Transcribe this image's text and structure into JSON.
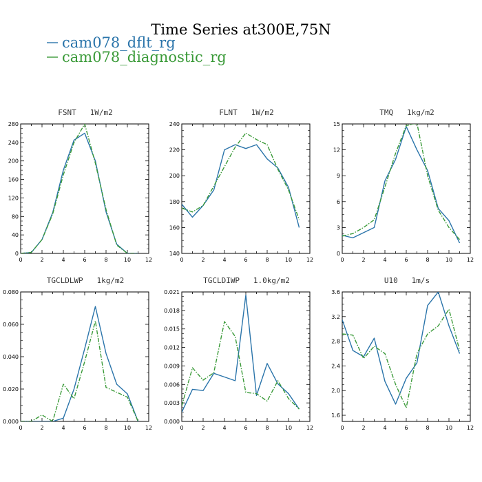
{
  "figure": {
    "title": "Time Series at300E,75N"
  },
  "colors": {
    "series1": "#2a74aa",
    "series2": "#3a9a38"
  },
  "legend": [
    {
      "label": "cam078_dflt_rg",
      "color": "#2a74aa",
      "style": "solid"
    },
    {
      "label": "cam078_diagnostic_rg",
      "color": "#3a9a38",
      "style": "dashdot"
    }
  ],
  "chart_data": [
    {
      "type": "line",
      "title": "FSNT   1W/m2",
      "x": [
        0,
        1,
        2,
        3,
        4,
        5,
        6,
        7,
        8,
        9,
        10,
        11
      ],
      "xlim": [
        0,
        12
      ],
      "xticks": [
        0,
        2,
        4,
        6,
        8,
        10,
        12
      ],
      "ylim": [
        0,
        280
      ],
      "yticks": [
        0,
        40,
        80,
        120,
        160,
        200,
        240,
        280
      ],
      "ytick_labels": [
        "0",
        "40",
        "80",
        "120",
        "160",
        "200",
        "240",
        "280"
      ],
      "series": [
        {
          "name": "cam078_dflt_rg",
          "values": [
            0,
            2,
            30,
            88,
            180,
            245,
            260,
            200,
            90,
            20,
            0,
            0
          ]
        },
        {
          "name": "cam078_diagnostic_rg",
          "values": [
            0,
            2,
            30,
            85,
            170,
            240,
            280,
            195,
            95,
            18,
            0,
            0
          ]
        }
      ]
    },
    {
      "type": "line",
      "title": "FLNT   1W/m2",
      "x": [
        0,
        1,
        2,
        3,
        4,
        5,
        6,
        7,
        8,
        9,
        10,
        11
      ],
      "xlim": [
        0,
        12
      ],
      "xticks": [
        0,
        2,
        4,
        6,
        8,
        10,
        12
      ],
      "ylim": [
        140,
        240
      ],
      "yticks": [
        140,
        160,
        180,
        200,
        220,
        240
      ],
      "ytick_labels": [
        "140",
        "160",
        "180",
        "200",
        "220",
        "240"
      ],
      "series": [
        {
          "name": "cam078_dflt_rg",
          "values": [
            178,
            168,
            177,
            189,
            220,
            224,
            221,
            224,
            213,
            206,
            191,
            160
          ]
        },
        {
          "name": "cam078_diagnostic_rg",
          "values": [
            175,
            172,
            177,
            192,
            207,
            222,
            233,
            228,
            224,
            205,
            189,
            166
          ]
        }
      ]
    },
    {
      "type": "line",
      "title": "TMQ   1kg/m2",
      "x": [
        0,
        1,
        2,
        3,
        4,
        5,
        6,
        7,
        8,
        9,
        10,
        11
      ],
      "xlim": [
        0,
        12
      ],
      "xticks": [
        0,
        2,
        4,
        6,
        8,
        10,
        12
      ],
      "ylim": [
        0,
        15
      ],
      "yticks": [
        0,
        3,
        6,
        9,
        12,
        15
      ],
      "ytick_labels": [
        "0",
        "3",
        "6",
        "9",
        "12",
        "15"
      ],
      "series": [
        {
          "name": "cam078_dflt_rg",
          "values": [
            2.1,
            1.8,
            2.4,
            3.0,
            8.4,
            10.9,
            14.7,
            12.0,
            9.6,
            5.2,
            3.8,
            1.2
          ]
        },
        {
          "name": "cam078_diagnostic_rg",
          "values": [
            2.0,
            2.3,
            3.0,
            3.9,
            7.7,
            11.6,
            14.8,
            15.1,
            9.0,
            5.0,
            3.0,
            1.6
          ]
        }
      ]
    },
    {
      "type": "line",
      "title": "TGCLDLWP   1kg/m2",
      "x": [
        0,
        1,
        2,
        3,
        4,
        5,
        6,
        7,
        8,
        9,
        10,
        11
      ],
      "xlim": [
        0,
        12
      ],
      "xticks": [
        0,
        2,
        4,
        6,
        8,
        10,
        12
      ],
      "ylim": [
        0,
        0.08
      ],
      "yticks": [
        0,
        0.02,
        0.04,
        0.06,
        0.08
      ],
      "ytick_labels": [
        "0.000",
        "0.020",
        "0.040",
        "0.060",
        "0.080"
      ],
      "series": [
        {
          "name": "cam078_dflt_rg",
          "values": [
            0,
            0,
            0,
            0,
            0.002,
            0.02,
            0.045,
            0.071,
            0.042,
            0.023,
            0.017,
            0
          ]
        },
        {
          "name": "cam078_diagnostic_rg",
          "values": [
            0,
            0,
            0.004,
            0,
            0.023,
            0.014,
            0.037,
            0.062,
            0.021,
            0.018,
            0.015,
            0
          ]
        }
      ]
    },
    {
      "type": "line",
      "title": "TGCLDIWP   1.0kg/m2",
      "x": [
        0,
        1,
        2,
        3,
        4,
        5,
        6,
        7,
        8,
        9,
        10,
        11
      ],
      "xlim": [
        0,
        12
      ],
      "xticks": [
        0,
        2,
        4,
        6,
        8,
        10,
        12
      ],
      "ylim": [
        0,
        0.021
      ],
      "yticks": [
        0,
        0.003,
        0.006,
        0.009,
        0.012,
        0.015,
        0.018,
        0.021
      ],
      "ytick_labels": [
        "0.000",
        "0.003",
        "0.006",
        "0.009",
        "0.012",
        "0.015",
        "0.018",
        "0.021"
      ],
      "series": [
        {
          "name": "cam078_dflt_rg",
          "values": [
            0.0015,
            0.0052,
            0.005,
            0.0078,
            0.0072,
            0.0066,
            0.0205,
            0.0042,
            0.0094,
            0.0061,
            0.0045,
            0.002
          ]
        },
        {
          "name": "cam078_diagnostic_rg",
          "values": [
            0.0025,
            0.0087,
            0.0067,
            0.0079,
            0.0162,
            0.0138,
            0.0047,
            0.0045,
            0.0033,
            0.0066,
            0.0037,
            0.002
          ]
        }
      ]
    },
    {
      "type": "line",
      "title": "U10   1m/s",
      "x": [
        0,
        1,
        2,
        3,
        4,
        5,
        6,
        7,
        8,
        9,
        10,
        11
      ],
      "xlim": [
        0,
        12
      ],
      "xticks": [
        0,
        2,
        4,
        6,
        8,
        10,
        12
      ],
      "ylim": [
        1.5,
        3.6
      ],
      "yticks": [
        1.6,
        2.0,
        2.4,
        2.8,
        3.2,
        3.6
      ],
      "ytick_labels": [
        "1.6",
        "2.0",
        "2.4",
        "2.8",
        "3.2",
        "3.6"
      ],
      "series": [
        {
          "name": "cam078_dflt_rg",
          "values": [
            3.15,
            2.65,
            2.55,
            2.85,
            2.15,
            1.78,
            2.2,
            2.45,
            3.38,
            3.6,
            3.05,
            2.6
          ]
        },
        {
          "name": "cam078_diagnostic_rg",
          "values": [
            2.92,
            2.9,
            2.52,
            2.72,
            2.6,
            2.1,
            1.72,
            2.6,
            2.92,
            3.05,
            3.32,
            2.65
          ]
        }
      ]
    }
  ]
}
